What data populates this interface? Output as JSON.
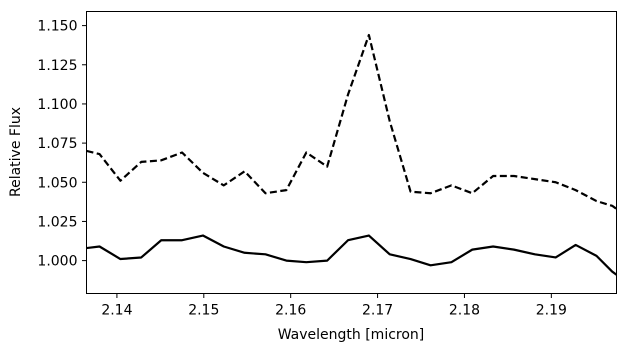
{
  "chart_data": {
    "type": "line",
    "xlabel": "Wavelength [micron]",
    "ylabel": "Relative Flux",
    "xlim": [
      2.1365,
      2.1975
    ],
    "ylim": [
      0.979,
      1.159
    ],
    "x_ticks": [
      2.14,
      2.15,
      2.16,
      2.17,
      2.18,
      2.19
    ],
    "x_tick_labels": [
      "2.14",
      "2.15",
      "2.16",
      "2.17",
      "2.18",
      "2.19"
    ],
    "y_ticks": [
      1.0,
      1.025,
      1.05,
      1.075,
      1.1,
      1.125,
      1.15
    ],
    "y_tick_labels": [
      "1.000",
      "1.025",
      "1.050",
      "1.075",
      "1.100",
      "1.125",
      "1.150"
    ],
    "grid": false,
    "legend": "none",
    "series": [
      {
        "style": "dashed",
        "color": "#000000",
        "x": [
          2.1365,
          2.138,
          2.1404,
          2.1428,
          2.1451,
          2.1475,
          2.1499,
          2.1523,
          2.1547,
          2.1571,
          2.1595,
          2.1618,
          2.1642,
          2.1666,
          2.169,
          2.1714,
          2.1738,
          2.1761,
          2.1785,
          2.1809,
          2.1833,
          2.1857,
          2.1881,
          2.1905,
          2.1928,
          2.1952,
          2.197,
          2.1975
        ],
        "values": [
          1.07,
          1.068,
          1.051,
          1.063,
          1.064,
          1.069,
          1.056,
          1.048,
          1.057,
          1.043,
          1.045,
          1.069,
          1.06,
          1.106,
          1.144,
          1.089,
          1.044,
          1.043,
          1.048,
          1.043,
          1.054,
          1.054,
          1.052,
          1.05,
          1.045,
          1.038,
          1.035,
          1.033
        ]
      },
      {
        "style": "solid",
        "color": "#000000",
        "x": [
          2.1365,
          2.138,
          2.1404,
          2.1428,
          2.1451,
          2.1475,
          2.1499,
          2.1523,
          2.1547,
          2.1571,
          2.1595,
          2.1618,
          2.1642,
          2.1666,
          2.169,
          2.1714,
          2.1738,
          2.1761,
          2.1785,
          2.1809,
          2.1833,
          2.1857,
          2.1881,
          2.1905,
          2.1928,
          2.1952,
          2.197,
          2.1975
        ],
        "values": [
          1.008,
          1.009,
          1.001,
          1.002,
          1.013,
          1.013,
          1.016,
          1.009,
          1.005,
          1.004,
          1.0,
          0.999,
          1.0,
          1.013,
          1.016,
          1.004,
          1.001,
          0.997,
          0.999,
          1.007,
          1.009,
          1.007,
          1.004,
          1.002,
          1.01,
          1.003,
          0.993,
          0.991
        ]
      }
    ]
  }
}
